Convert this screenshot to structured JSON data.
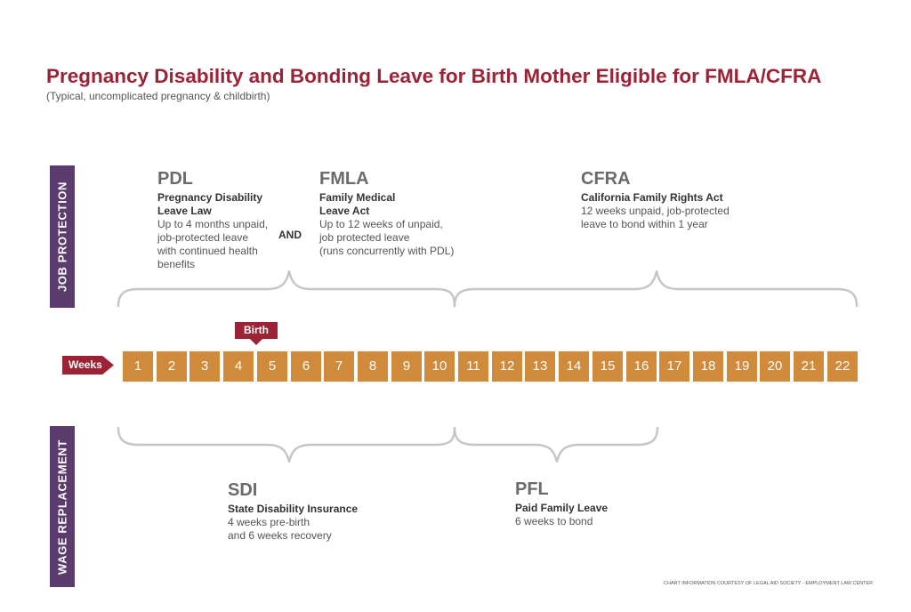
{
  "header": {
    "title": "Pregnancy Disability and Bonding Leave for Birth Mother Eligible for FMLA/CFRA",
    "subtitle": "(Typical, uncomplicated pregnancy & childbirth)"
  },
  "side_labels": {
    "job_protection": "JOB PROTECTION",
    "wage_replacement": "WAGE REPLACEMENT"
  },
  "job_protection": {
    "pdl": {
      "abbr": "PDL",
      "name_lines": [
        "Pregnancy Disability",
        "Leave Law"
      ],
      "desc_lines": [
        "Up to 4 months unpaid,",
        "job-protected leave",
        "with continued health",
        "benefits"
      ]
    },
    "and_label": "AND",
    "fmla": {
      "abbr": "FMLA",
      "name_lines": [
        "Family Medical",
        "Leave Act"
      ],
      "desc_lines": [
        "Up to 12 weeks of unpaid,",
        "job protected leave",
        "(runs concurrently with PDL)"
      ]
    },
    "cfra": {
      "abbr": "CFRA",
      "name_lines": [
        "California Family Rights Act"
      ],
      "desc_lines": [
        "12 weeks unpaid, job-protected",
        "leave to bond within 1 year"
      ]
    }
  },
  "timeline": {
    "weeks_label": "Weeks",
    "birth_label": "Birth",
    "weeks": [
      "1",
      "2",
      "3",
      "4",
      "5",
      "6",
      "7",
      "8",
      "9",
      "10",
      "11",
      "12",
      "13",
      "14",
      "15",
      "16",
      "17",
      "18",
      "19",
      "20",
      "21",
      "22"
    ]
  },
  "wage_replacement": {
    "sdi": {
      "abbr": "SDI",
      "name_lines": [
        "State Disability Insurance"
      ],
      "desc_lines": [
        "4 weeks pre-birth",
        "and 6 weeks recovery"
      ]
    },
    "pfl": {
      "abbr": "PFL",
      "name_lines": [
        "Paid Family Leave"
      ],
      "desc_lines": [
        "6 weeks to bond"
      ]
    }
  },
  "credit": "CHART INFORMATION COURTESY OF LEGAL AID SOCIETY - EMPLOYMENT LAW CENTER",
  "colors": {
    "title": "#9b2335",
    "accent": "#9b2335",
    "week_cell": "#d08a3c",
    "side_label": "#5c3c6e",
    "brace": "#c6c6c6"
  }
}
